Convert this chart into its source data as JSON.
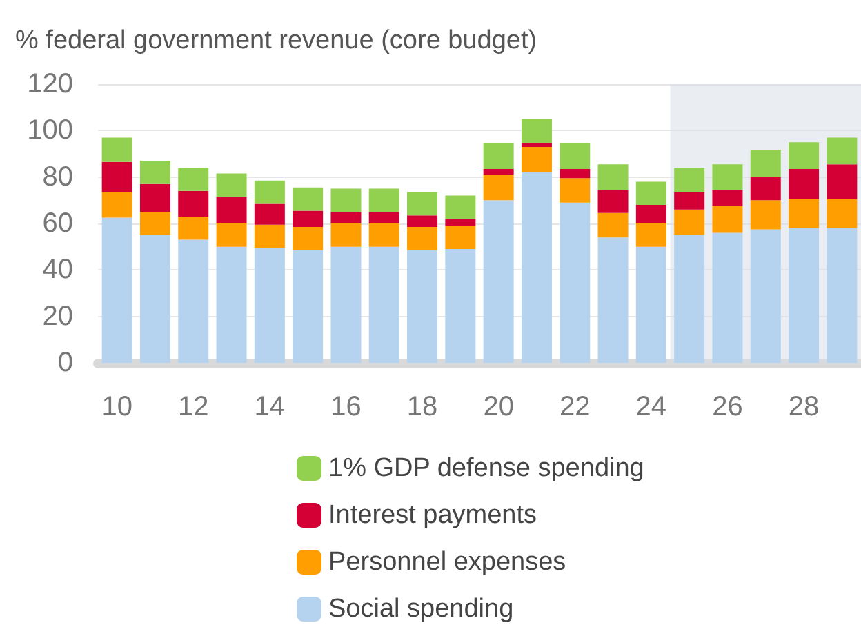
{
  "chart_data": {
    "type": "bar",
    "ylabel": "% federal government revenue (core budget)",
    "stacked": true,
    "x": [
      10,
      11,
      12,
      13,
      14,
      15,
      16,
      17,
      18,
      19,
      20,
      21,
      22,
      23,
      24,
      25,
      26,
      27,
      28,
      29
    ],
    "series": [
      {
        "name": "Social spending",
        "color": "#b5d3ee",
        "values": [
          62.5,
          55,
          53,
          50,
          49.5,
          48.5,
          50,
          50,
          48.5,
          49,
          70,
          82,
          69,
          54,
          50,
          55,
          56,
          57.5,
          58,
          58
        ]
      },
      {
        "name": "Personnel expenses",
        "color": "#ff9e00",
        "values": [
          11,
          10,
          10,
          10,
          10,
          10,
          10,
          10,
          10,
          10,
          11,
          11,
          10.5,
          10.5,
          10,
          11,
          11.5,
          12.5,
          12.5,
          12.5
        ]
      },
      {
        "name": "Interest payments",
        "color": "#d40035",
        "values": [
          13,
          12,
          11,
          11.5,
          9,
          7,
          5,
          5,
          5,
          3,
          2.5,
          1.5,
          4,
          10,
          8,
          7.5,
          7,
          10,
          13,
          15
        ]
      },
      {
        "name": "1% GDP defense spending",
        "color": "#92d050",
        "values": [
          10.5,
          10,
          10,
          10,
          10,
          10,
          10,
          10,
          10,
          10,
          11,
          10.5,
          11,
          11,
          10,
          10.5,
          11,
          11.5,
          11.5,
          11.5
        ]
      }
    ],
    "xlim": [
      9.5,
      29.5
    ],
    "xticks": [
      10,
      12,
      14,
      16,
      18,
      20,
      22,
      24,
      26,
      28
    ],
    "ylim": [
      0,
      120
    ],
    "yticks": [
      0,
      20,
      40,
      60,
      80,
      100,
      120
    ],
    "bands": [
      {
        "axis": "x",
        "from": 24.5,
        "to": 29.5,
        "color": "#d5dce4"
      }
    ],
    "grid": "y",
    "legend": "bottom"
  }
}
